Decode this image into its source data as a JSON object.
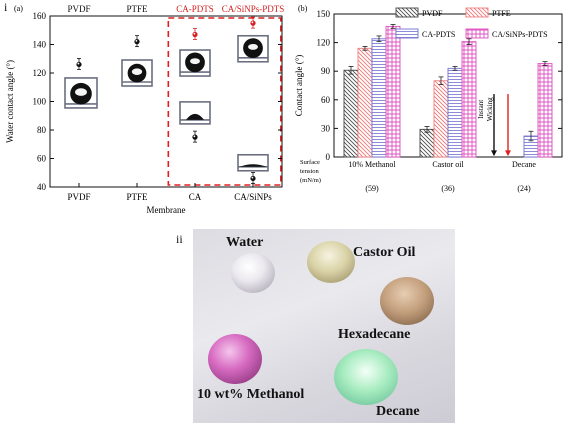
{
  "labels": {
    "panel_i": "i",
    "panel_ii": "ii"
  },
  "chart_data": [
    {
      "type": "scatter",
      "panel_label": "(a)",
      "categories": [
        "PVDF",
        "PTFE",
        "CA",
        "CA/SiNPs"
      ],
      "top_labels": [
        "PVDF",
        "PTFE",
        "CA-PDTS",
        "CA/SiNPs-PDTS"
      ],
      "xlabel": "Membrane",
      "ylabel": "Water contact angle (°)",
      "ylim": [
        40,
        160
      ],
      "yticks": [
        40,
        60,
        80,
        100,
        120,
        140,
        160
      ],
      "series": [
        {
          "name": "CA-PDTS",
          "values": [
            null,
            null,
            147,
            155
          ],
          "color": "#d42020"
        },
        {
          "name": "",
          "values": [
            126,
            142,
            75,
            46
          ],
          "color": "#111111"
        }
      ],
      "highlight_box": {
        "categories": [
          "CA",
          "CA/SiNPs"
        ],
        "color": "#e02020",
        "style": "dashed"
      }
    },
    {
      "type": "bar",
      "panel_label": "(b)",
      "categories": [
        "10% Methanol",
        "Castor oil",
        "Decane"
      ],
      "category_notes": [
        "(59)",
        "(36)",
        "(24)"
      ],
      "row_label": "Surface tension (mN/m)",
      "ylabel": "Contact angle (°)",
      "ylim": [
        0,
        150
      ],
      "yticks": [
        0,
        30,
        60,
        90,
        120,
        150
      ],
      "series": [
        {
          "name": "PVDF",
          "values": [
            91,
            29,
            null
          ],
          "color": "#444444",
          "pattern": "diag-back"
        },
        {
          "name": "PTFE",
          "values": [
            114,
            80,
            null
          ],
          "color": "#f08080",
          "pattern": "diag-back-red"
        },
        {
          "name": "CA-PDTS",
          "values": [
            124,
            93,
            22
          ],
          "color": "#7070d0",
          "pattern": "horizontal"
        },
        {
          "name": "CA/SiNPs-PDTS",
          "values": [
            137,
            121,
            98
          ],
          "color": "#e050c0",
          "pattern": "grid"
        }
      ],
      "errors": [
        [
          4,
          3,
          null
        ],
        [
          2,
          4,
          null
        ],
        [
          3,
          2,
          5
        ],
        [
          2,
          3,
          2
        ]
      ],
      "annotation": {
        "text": "Instant Wicking",
        "arrows": [
          "#111111",
          "#e02020"
        ]
      },
      "legend": "top-right"
    }
  ],
  "photo": {
    "labels": [
      "Water",
      "Castor Oil",
      "Hexadecane",
      "10 wt% Methanol",
      "Decane"
    ],
    "colors": {
      "water": "#e6e4ea",
      "castor": "#ddd6b0",
      "hexadecane": "#c9a685",
      "methanol": "#d46bc0",
      "decane": "#9fe0b5"
    }
  }
}
